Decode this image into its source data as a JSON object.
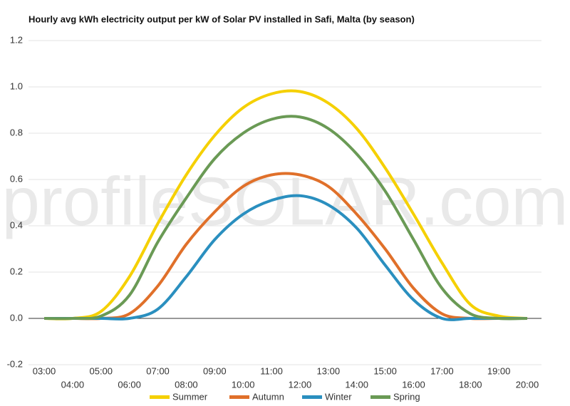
{
  "chart_data": {
    "type": "line",
    "title": "Hourly avg kWh electricity output per kW of Solar PV installed in Safi, Malta (by season)",
    "watermark": "profileSOLAR.com",
    "categories": [
      "03:00",
      "04:00",
      "05:00",
      "06:00",
      "07:00",
      "08:00",
      "09:00",
      "10:00",
      "11:00",
      "12:00",
      "13:00",
      "14:00",
      "15:00",
      "16:00",
      "17:00",
      "18:00",
      "19:00",
      "20:00"
    ],
    "series": [
      {
        "name": "Summer",
        "color": "#f5d000",
        "values": [
          0,
          0,
          0.03,
          0.18,
          0.41,
          0.62,
          0.79,
          0.91,
          0.97,
          0.98,
          0.93,
          0.82,
          0.65,
          0.45,
          0.24,
          0.06,
          0.01,
          0
        ]
      },
      {
        "name": "Autumn",
        "color": "#e0702a",
        "values": [
          0,
          0,
          0,
          0.02,
          0.14,
          0.32,
          0.46,
          0.57,
          0.62,
          0.62,
          0.57,
          0.45,
          0.3,
          0.13,
          0.02,
          0,
          0,
          0
        ]
      },
      {
        "name": "Winter",
        "color": "#2a8fbf",
        "values": [
          0,
          0,
          0,
          0,
          0.04,
          0.18,
          0.34,
          0.45,
          0.51,
          0.53,
          0.49,
          0.39,
          0.23,
          0.08,
          0,
          0,
          0,
          0
        ]
      },
      {
        "name": "Spring",
        "color": "#6a9a55",
        "values": [
          0,
          0,
          0.01,
          0.1,
          0.33,
          0.52,
          0.69,
          0.8,
          0.86,
          0.87,
          0.82,
          0.71,
          0.55,
          0.34,
          0.13,
          0.02,
          0,
          0
        ]
      }
    ],
    "ylim": [
      -0.2,
      1.2
    ],
    "yticks": [
      -0.2,
      {
        "value": 0,
        "label": "0.0"
      },
      0.2,
      0.4,
      0.6,
      0.8,
      {
        "value": 1,
        "label": "1.0"
      },
      1.2
    ],
    "grid": true,
    "legend": "bottom"
  }
}
